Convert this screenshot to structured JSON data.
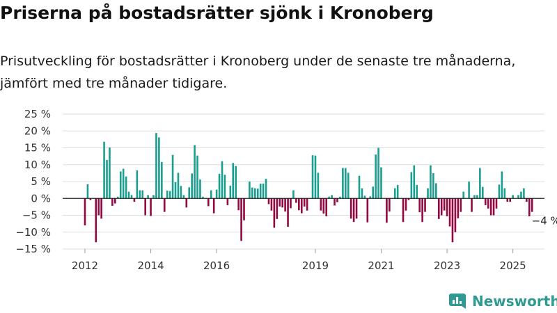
{
  "title": "Priserna på bostadsrätter sjönk i Kronoberg",
  "subtitle": "Prisutveckling för bostadsrätter i Kronoberg under de senaste tre månaderna, jämfört med tre månader tidigare.",
  "brand": {
    "name": "Newsworthy"
  },
  "colors": {
    "positive": "#1a9e8f",
    "negative": "#950741",
    "zero_line": "#222222",
    "grid": "#dddddd",
    "brand": "#2f9a92"
  },
  "chart_data": {
    "type": "bar",
    "x_start": "2012-01",
    "x_frequency": "monthly",
    "x_ticks": [
      "2012",
      "2014",
      "2016",
      "2019",
      "2021",
      "2023",
      "2025"
    ],
    "ylim": [
      -15,
      25
    ],
    "y_ticks": [
      25,
      20,
      15,
      10,
      5,
      0,
      -5,
      -10,
      -15
    ],
    "y_tick_labels": [
      "25 %",
      "20 %",
      "15 %",
      "10 %",
      "5 %",
      "0 %",
      "−5 %",
      "−10 %",
      "−15 %"
    ],
    "values": [
      -8,
      4.2,
      -0.5,
      0,
      -13,
      -5,
      -6,
      16.8,
      11.4,
      15.1,
      -2.2,
      -1.5,
      0.5,
      8,
      8.8,
      6.5,
      2,
      1,
      -1,
      8.3,
      2.4,
      2.4,
      -5,
      1,
      -5.2,
      1,
      19.4,
      18.1,
      10.8,
      -4,
      2.3,
      2.2,
      12.9,
      4.8,
      7.6,
      3.7,
      1,
      -2.7,
      3.3,
      7.4,
      15.8,
      12.7,
      5.6,
      0.5,
      0,
      -2.3,
      2.4,
      -4.4,
      2.6,
      7.3,
      11,
      7,
      -2,
      3.8,
      10.5,
      9.6,
      -3.5,
      -12.6,
      -6.5,
      0,
      5,
      3.2,
      3,
      2.9,
      4.4,
      4.4,
      5.8,
      -1.7,
      -3.6,
      -8.7,
      -6.1,
      -2.4,
      -2.7,
      -3.9,
      -8.4,
      -2.9,
      2.4,
      -1.3,
      -3.5,
      -4.4,
      -2.4,
      -3.6,
      0,
      12.8,
      12.7,
      7.6,
      -3.6,
      -4.5,
      -5.3,
      0.5,
      1,
      -2.1,
      -1.1,
      0.5,
      9,
      9,
      7.6,
      -6,
      -7,
      -6,
      6.7,
      3,
      0.8,
      -7.1,
      0.6,
      3.5,
      13,
      15,
      9.2,
      0,
      -7.2,
      -3.9,
      0,
      3,
      4,
      0,
      -7,
      -3.6,
      -0.5,
      7.8,
      9.8,
      4,
      -4.1,
      -7,
      -4,
      3,
      9.8,
      7.5,
      4.5,
      -6.1,
      -5,
      -3.6,
      -5.3,
      -8.3,
      -13,
      -10,
      -5.9,
      -4,
      2,
      0,
      5,
      -4,
      1,
      1,
      9,
      3.4,
      -2,
      -3,
      -5,
      -5,
      -3,
      4.1,
      8,
      3,
      -1,
      -1,
      1,
      0,
      1,
      2,
      3,
      -1,
      -5.3,
      -4
    ],
    "annotation": "−4 %"
  }
}
